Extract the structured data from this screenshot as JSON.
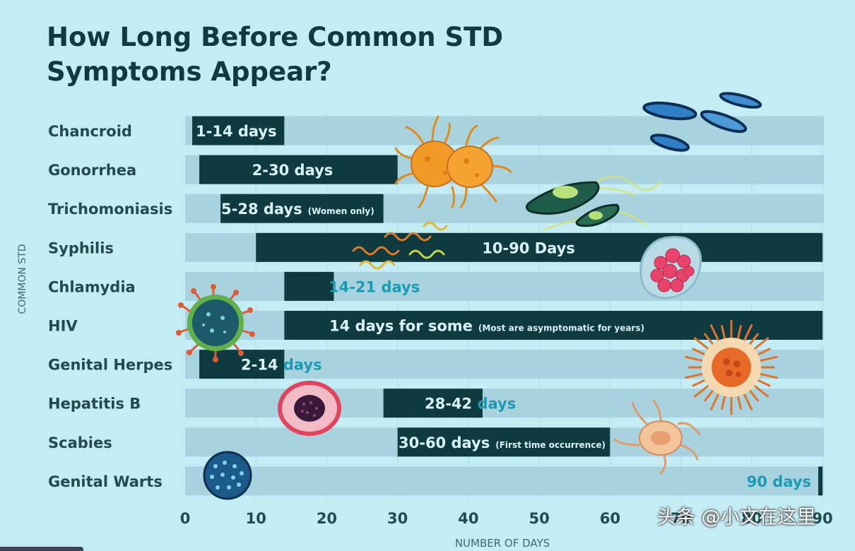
{
  "title_line1": "How Long Before Common STD",
  "title_line2": "Symptoms Appear?",
  "watermark": "头条 @小文在这里",
  "colors": {
    "background": "#c4ecf5",
    "track": "#a8d3de",
    "bar": "#0f3a40",
    "label_light": "#d9f4f8",
    "label_teal": "#1a9bb3",
    "text_dark": "#244a4e"
  },
  "chart_data": {
    "type": "bar",
    "orientation": "horizontal",
    "xlabel": "NUMBER OF DAYS",
    "ylabel": "COMMON STD",
    "xlim": [
      0,
      90
    ],
    "xticks": [
      "0",
      "10",
      "20",
      "30",
      "40",
      "50",
      "60",
      "70",
      "80",
      "90"
    ],
    "grid": true,
    "categories": [
      "Chancroid",
      "Gonorrhea",
      "Trichomoniasis",
      "Syphilis",
      "Chlamydia",
      "HIV",
      "Genital Herpes",
      "Hepatitis B",
      "Scabies",
      "Genital Warts"
    ],
    "ranges": [
      {
        "start": 1,
        "end": 14,
        "label": "1-14 days",
        "note": ""
      },
      {
        "start": 2,
        "end": 30,
        "label": "2-30 days",
        "note": ""
      },
      {
        "start": 5,
        "end": 28,
        "label": "5-28 days",
        "note": "(Women only)"
      },
      {
        "start": 10,
        "end": 90,
        "label": "10-90 Days",
        "note": ""
      },
      {
        "start": 14,
        "end": 21,
        "label": "14-21 days",
        "note": ""
      },
      {
        "start": 14,
        "end": 90,
        "label": "14 days for some",
        "note": "(Most are asymptomatic for years)"
      },
      {
        "start": 2,
        "end": 14,
        "label": "2-14 days",
        "note": ""
      },
      {
        "start": 28,
        "end": 42,
        "label": "28-42 days",
        "note": ""
      },
      {
        "start": 30,
        "end": 60,
        "label": "30-60 days",
        "note": "(First time occurrence)"
      },
      {
        "start": 90,
        "end": 90,
        "label": "90 days",
        "note": ""
      }
    ]
  }
}
